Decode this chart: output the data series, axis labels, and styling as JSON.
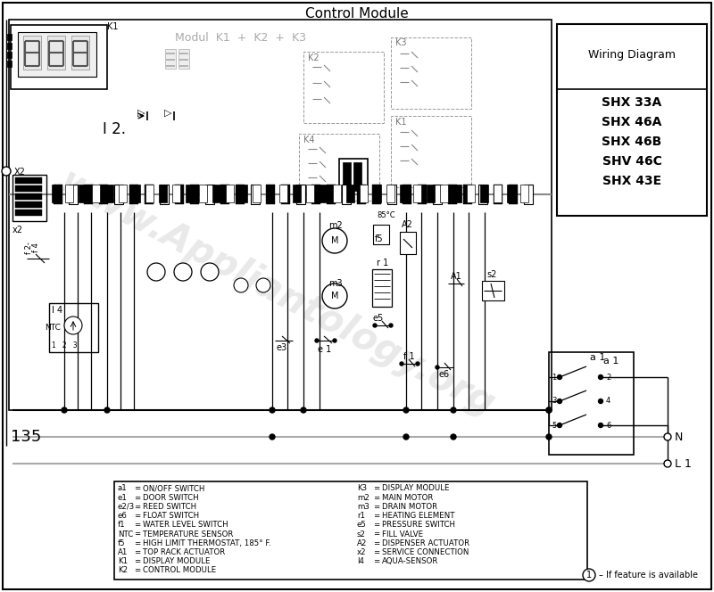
{
  "title": "Control Module",
  "bg_color": "#ffffff",
  "watermark_text": "www.Appliantology.org",
  "watermark_color": "#c8c8c8",
  "watermark_alpha": 0.4,
  "page_number": "135",
  "wiring_box_title": "Wiring Diagram",
  "wiring_box_models": [
    "SHX 33A",
    "SHX 46A",
    "SHX 46B",
    "SHV 46C",
    "SHX 43E"
  ],
  "legend_items_left": [
    [
      "a1",
      "ON/OFF SWITCH"
    ],
    [
      "e1",
      "DOOR SWITCH"
    ],
    [
      "e2/3",
      "REED SWITCH"
    ],
    [
      "e6",
      "FLOAT SWITCH"
    ],
    [
      "f1",
      "WATER LEVEL SWITCH"
    ],
    [
      "NTC",
      "TEMPERATURE SENSOR"
    ],
    [
      "f5",
      "HIGH LIMIT THERMOSTAT, 185° F."
    ],
    [
      "A1",
      "TOP RACK ACTUATOR"
    ],
    [
      "K1",
      "DISPLAY MODULE"
    ],
    [
      "K2",
      "CONTROL MODULE"
    ]
  ],
  "legend_items_right": [
    [
      "K3",
      "DISPLAY MODULE"
    ],
    [
      "m2",
      "MAIN MOTOR"
    ],
    [
      "m3",
      "DRAIN MOTOR"
    ],
    [
      "r1",
      "HEATING ELEMENT"
    ],
    [
      "e5",
      "PRESSURE SWITCH"
    ],
    [
      "s2",
      "FILL VALVE"
    ],
    [
      "A2",
      "DISPENSER ACTUATOR"
    ],
    [
      "x2",
      "SERVICE CONNECTION"
    ],
    [
      "I4",
      "AQUA-SENSOR"
    ]
  ],
  "note_text": "– If feature is available"
}
